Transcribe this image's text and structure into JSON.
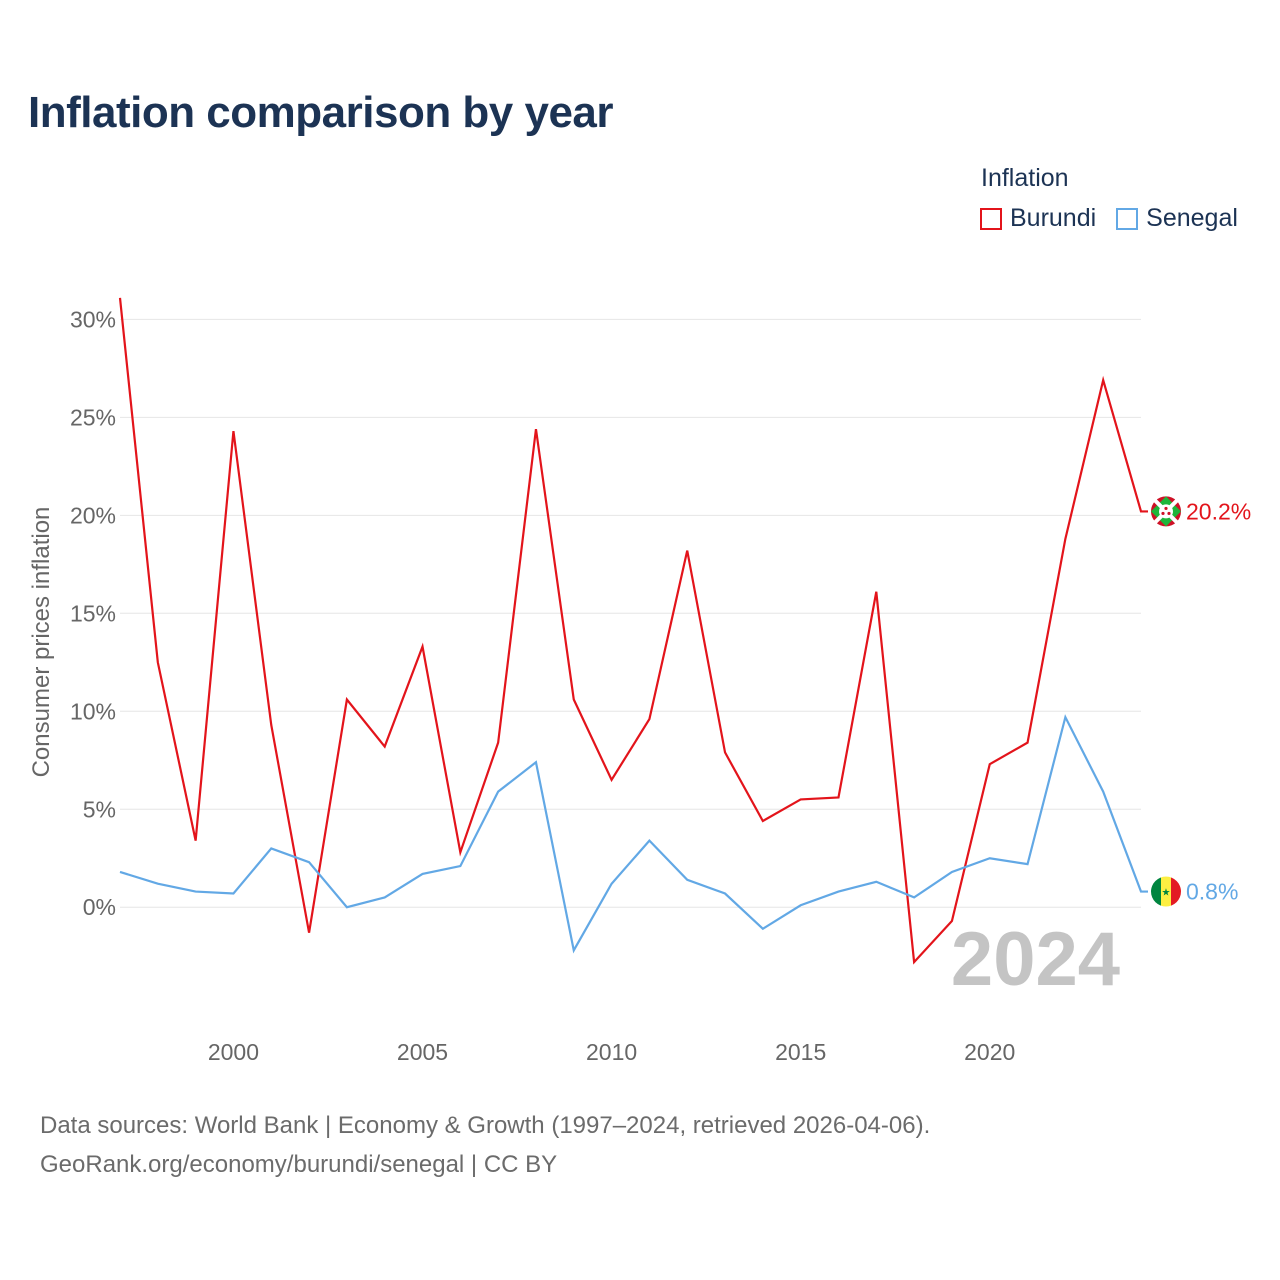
{
  "title": "Inflation comparison by year",
  "legend": {
    "title": "Inflation",
    "items": [
      {
        "label": "Burundi",
        "color": "#e3141b"
      },
      {
        "label": "Senegal",
        "color": "#62a8e5"
      }
    ]
  },
  "watermark_year": "2024",
  "source_line1": "Data sources: World Bank | Economy & Growth (1997–2024, retrieved 2026-04-06).",
  "source_line2": "GeoRank.org/economy/burundi/senegal | CC BY",
  "chart_data": {
    "type": "line",
    "title": "Inflation comparison by year",
    "xlabel": "",
    "ylabel": "Consumer prices inflation",
    "x": [
      1997,
      1998,
      1999,
      2000,
      2001,
      2002,
      2003,
      2004,
      2005,
      2006,
      2007,
      2008,
      2009,
      2010,
      2011,
      2012,
      2013,
      2014,
      2015,
      2016,
      2017,
      2018,
      2019,
      2020,
      2021,
      2022,
      2023,
      2024
    ],
    "xlim": [
      1997,
      2024
    ],
    "ylim": [
      -5.5,
      31.5
    ],
    "x_ticks": [
      2000,
      2005,
      2010,
      2015,
      2020
    ],
    "x_tick_labels": [
      "2000",
      "2005",
      "2010",
      "2015",
      "2020"
    ],
    "y_ticks": [
      0,
      5,
      10,
      15,
      20,
      25,
      30
    ],
    "y_tick_labels": [
      "0%",
      "5%",
      "10%",
      "15%",
      "20%",
      "25%",
      "30%"
    ],
    "grid": true,
    "legend_position": "top-right",
    "series": [
      {
        "name": "Burundi",
        "color": "#e3141b",
        "values": [
          31.1,
          12.5,
          3.4,
          24.3,
          9.3,
          -1.3,
          10.6,
          8.2,
          13.3,
          2.8,
          8.4,
          24.4,
          10.6,
          6.5,
          9.6,
          18.2,
          7.9,
          4.4,
          5.5,
          5.6,
          16.1,
          -2.8,
          -0.7,
          7.3,
          8.4,
          18.8,
          26.9,
          20.2
        ],
        "end_label": "20.2%"
      },
      {
        "name": "Senegal",
        "color": "#62a8e5",
        "values": [
          1.8,
          1.2,
          0.8,
          0.7,
          3.0,
          2.3,
          0.0,
          0.5,
          1.7,
          2.1,
          5.9,
          7.4,
          -2.2,
          1.2,
          3.4,
          1.4,
          0.7,
          -1.1,
          0.1,
          0.8,
          1.3,
          0.5,
          1.8,
          2.5,
          2.2,
          9.7,
          5.9,
          0.8
        ],
        "end_label": "0.8%"
      }
    ]
  }
}
